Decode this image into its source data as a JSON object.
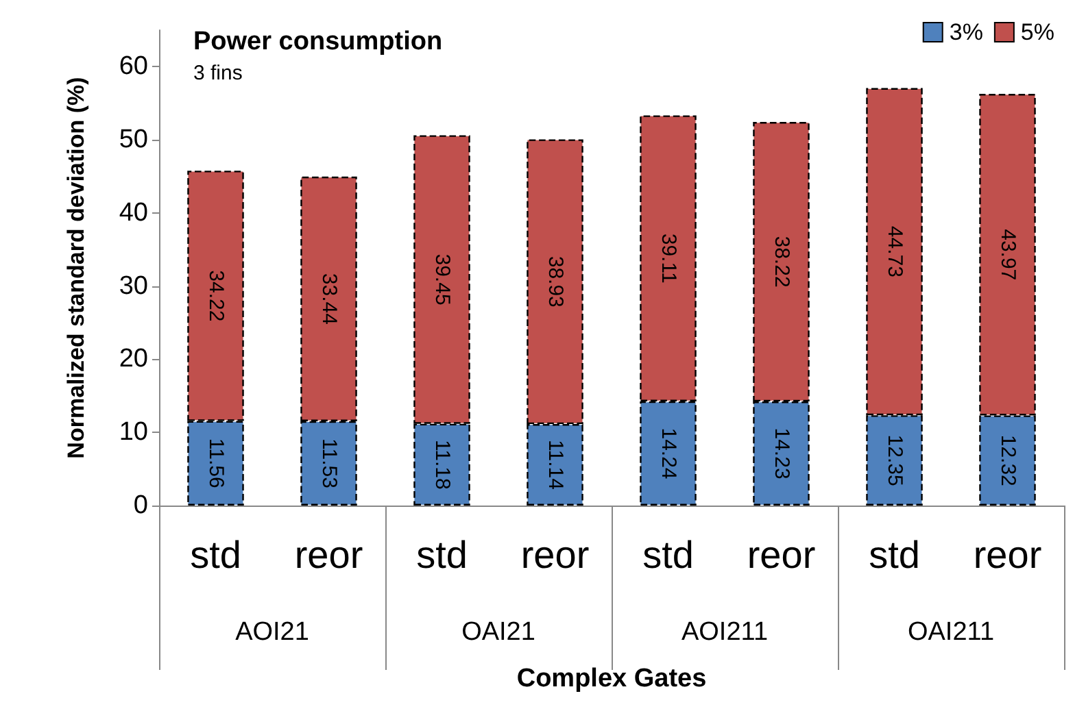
{
  "chart_data": {
    "type": "bar",
    "title": "Power consumption",
    "subtitle": "3 fins",
    "xlabel": "Complex Gates",
    "ylabel": "Normalized standard deviation (%)",
    "categories": [
      "std",
      "reor",
      "std",
      "reor",
      "std",
      "reor",
      "std",
      "reor"
    ],
    "annotations": [
      "AOI21",
      "OAI21",
      "AOI211",
      "OAI211"
    ],
    "series": [
      {
        "name": "3%",
        "color": "#4f81bd",
        "values": [
          11.56,
          11.53,
          11.18,
          11.14,
          14.24,
          14.23,
          12.35,
          12.32
        ]
      },
      {
        "name": "5%",
        "color": "#c0504d",
        "values": [
          34.22,
          33.44,
          39.45,
          38.93,
          39.11,
          38.22,
          44.73,
          43.97
        ]
      }
    ],
    "stacked": true,
    "data_labels": true,
    "ylim": [
      0,
      65
    ],
    "yticks": [
      0,
      10,
      20,
      30,
      40,
      50,
      60
    ],
    "grid": false,
    "legend": "top right"
  }
}
